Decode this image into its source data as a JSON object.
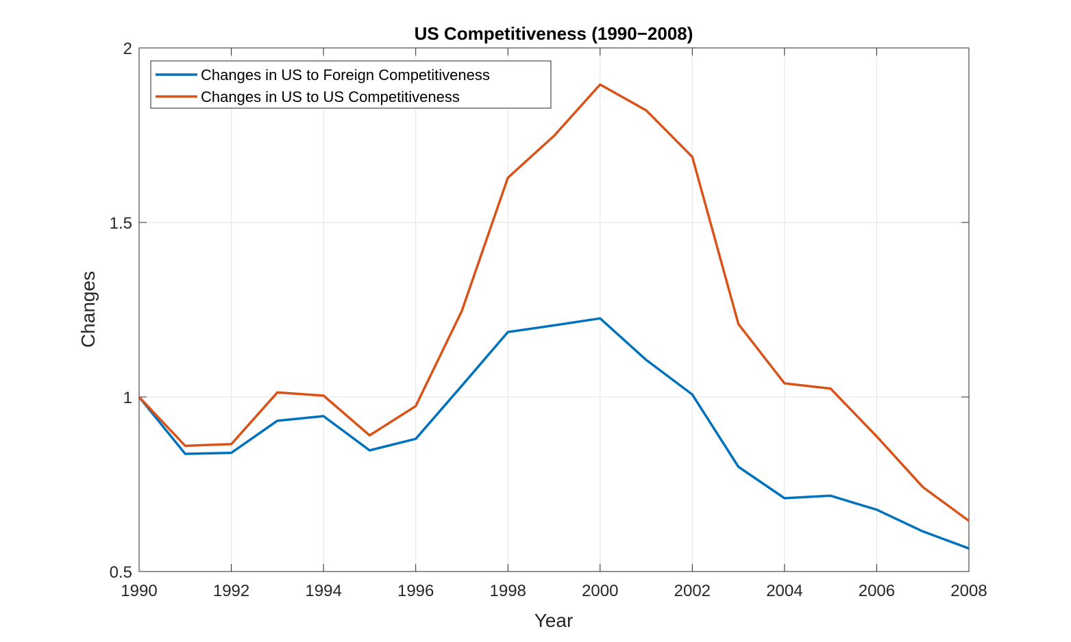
{
  "chart_data": {
    "type": "line",
    "title": "US Competitiveness (1990−2008)",
    "xlabel": "Year",
    "ylabel": "Changes",
    "x": [
      1990,
      1991,
      1992,
      1993,
      1994,
      1995,
      1996,
      1997,
      1998,
      1999,
      2000,
      2001,
      2002,
      2003,
      2004,
      2005,
      2006,
      2007,
      2008
    ],
    "xlim": [
      1990,
      2008
    ],
    "ylim": [
      0.5,
      2
    ],
    "xticks": [
      "1990",
      "1992",
      "1994",
      "1996",
      "1998",
      "2000",
      "2002",
      "2004",
      "2006",
      "2008"
    ],
    "yticks": [
      "0.5",
      "1",
      "1.5",
      "2"
    ],
    "grid": true,
    "legend_position": "top-left",
    "series": [
      {
        "name": "Changes in US to Foreign Competitiveness",
        "color": "#0072BD",
        "values": [
          1.0,
          0.837,
          0.84,
          0.932,
          0.945,
          0.847,
          0.88,
          1.032,
          1.186,
          1.205,
          1.225,
          1.106,
          1.007,
          0.8,
          0.71,
          0.717,
          0.677,
          0.615,
          0.566
        ]
      },
      {
        "name": "Changes in US to US Competitiveness",
        "color": "#D95319",
        "values": [
          1.0,
          0.86,
          0.865,
          1.013,
          1.004,
          0.89,
          0.974,
          1.246,
          1.628,
          1.748,
          1.895,
          1.821,
          1.688,
          1.209,
          1.039,
          1.024,
          0.887,
          0.742,
          0.645
        ]
      }
    ]
  }
}
